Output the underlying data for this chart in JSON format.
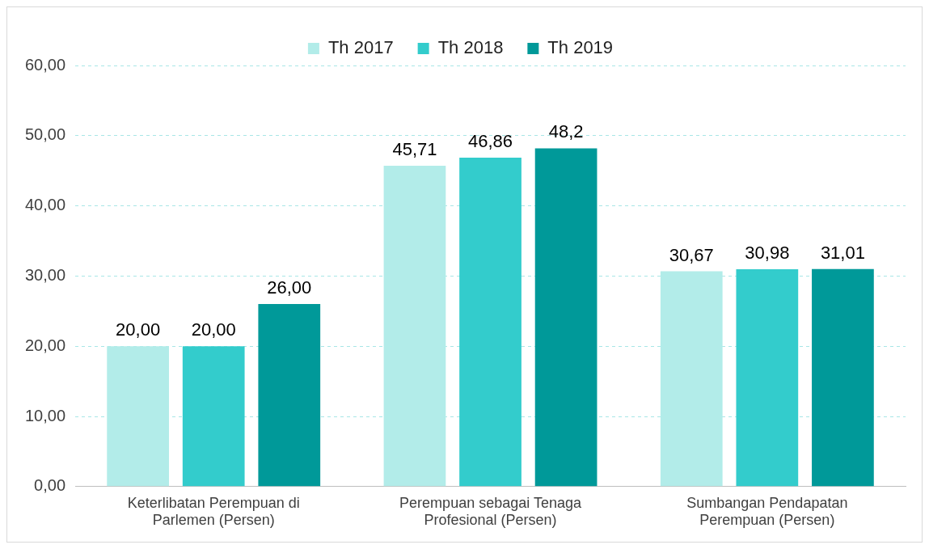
{
  "chart_data": {
    "type": "bar",
    "categories": [
      "Keterlibatan Perempuan di Parlemen (Persen)",
      "Perempuan sebagai Tenaga Profesional (Persen)",
      "Sumbangan Pendapatan Perempuan (Persen)"
    ],
    "series": [
      {
        "name": "Th 2017",
        "color": "#b2ece9",
        "values": [
          20,
          45.71,
          30.67
        ],
        "value_labels": [
          "20,00",
          "45,71",
          "30,67"
        ]
      },
      {
        "name": "Th 2018",
        "color": "#33cccc",
        "values": [
          20,
          46.86,
          30.98
        ],
        "value_labels": [
          "20,00",
          "46,86",
          "30,98"
        ]
      },
      {
        "name": "Th 2019",
        "color": "#009999",
        "values": [
          26,
          48.2,
          31.01
        ],
        "value_labels": [
          "26,00",
          "48,2",
          "31,01"
        ]
      }
    ],
    "ylim": [
      0,
      60
    ],
    "yticks": [
      {
        "value": 0,
        "label": "0,00"
      },
      {
        "value": 10,
        "label": "10,00"
      },
      {
        "value": 20,
        "label": "20,00"
      },
      {
        "value": 30,
        "label": "30,00"
      },
      {
        "value": 40,
        "label": "40,00"
      },
      {
        "value": 50,
        "label": "50,00"
      },
      {
        "value": 60,
        "label": "60,00"
      }
    ],
    "grid": "y",
    "legend": "top"
  }
}
